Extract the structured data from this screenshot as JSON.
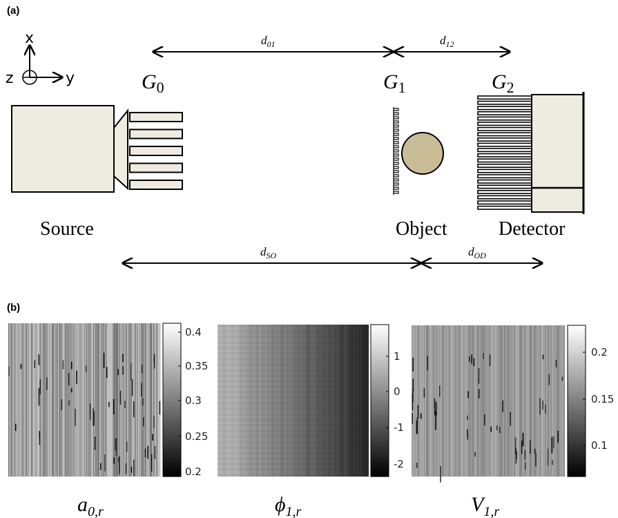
{
  "panel_a": {
    "label": "(a)",
    "axes": {
      "x": "x",
      "y": "y",
      "z": "z"
    },
    "gratings": [
      {
        "symbol": "G",
        "sub": "0"
      },
      {
        "symbol": "G",
        "sub": "1"
      },
      {
        "symbol": "G",
        "sub": "2"
      }
    ],
    "distances": [
      {
        "symbol": "d",
        "sub": "01"
      },
      {
        "symbol": "d",
        "sub": "12"
      },
      {
        "symbol": "d",
        "sub": "SO"
      },
      {
        "symbol": "d",
        "sub": "OD"
      }
    ],
    "labels": [
      "Source",
      "Object",
      "Detector"
    ]
  },
  "panel_b": {
    "label": "(b)",
    "maps": [
      {
        "symbol": "a",
        "sub": "0,r",
        "ticks": [
          "0.4",
          "0.35",
          "0.3",
          "0.25",
          "0.2"
        ]
      },
      {
        "symbol": "ϕ",
        "sub": "1,r",
        "ticks": [
          "1",
          "0",
          "-1",
          "-2"
        ]
      },
      {
        "symbol": "V",
        "sub": "1,r",
        "ticks": [
          "0.2",
          "0.15",
          "0.1"
        ]
      }
    ]
  }
}
